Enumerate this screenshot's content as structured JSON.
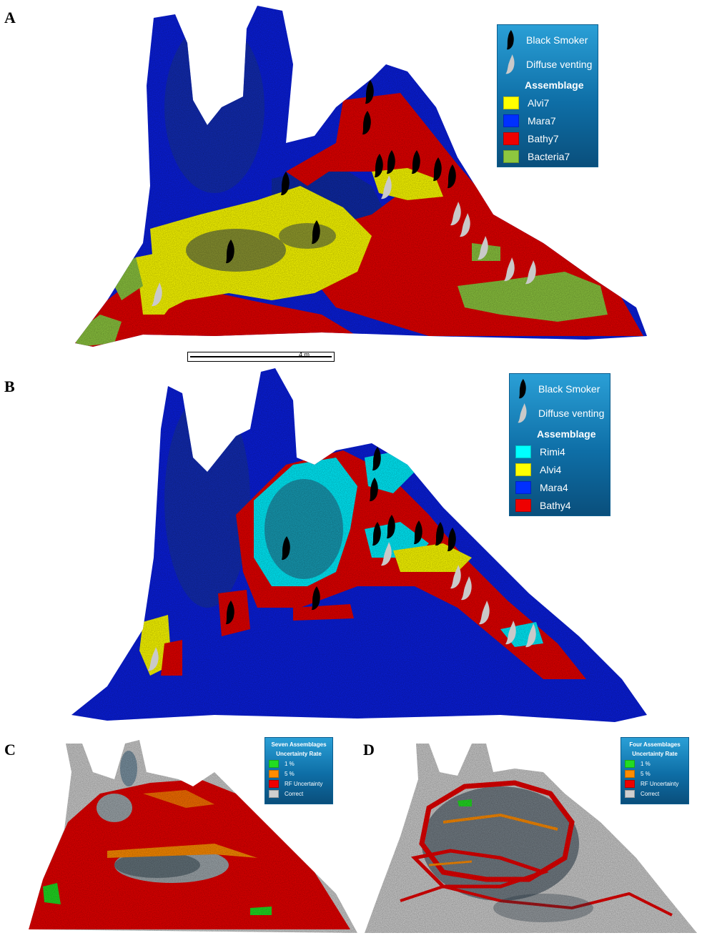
{
  "panels": {
    "a": {
      "letter": "A"
    },
    "b": {
      "letter": "B"
    },
    "c": {
      "letter": "C"
    },
    "d": {
      "letter": "D"
    }
  },
  "legend_a": {
    "black_smoker": "Black Smoker",
    "diffuse_venting": "Diffuse venting",
    "heading": "Assemblage",
    "items": [
      {
        "label": "Alvi7",
        "color": "#ffff00"
      },
      {
        "label": "Mara7",
        "color": "#0030ff"
      },
      {
        "label": "Bathy7",
        "color": "#ee0000"
      },
      {
        "label": "Bacteria7",
        "color": "#8dc63f"
      }
    ]
  },
  "legend_b": {
    "black_smoker": "Black Smoker",
    "diffuse_venting": "Diffuse venting",
    "heading": "Assemblage",
    "items": [
      {
        "label": "Rimi4",
        "color": "#00ffff"
      },
      {
        "label": "Alvi4",
        "color": "#ffff00"
      },
      {
        "label": "Mara4",
        "color": "#0030ff"
      },
      {
        "label": "Bathy4",
        "color": "#ee0000"
      }
    ]
  },
  "legend_c": {
    "heading1": "Seven Assemblages",
    "heading2": "Uncertainty Rate",
    "items": [
      {
        "label": "1 %",
        "color": "#22dd22"
      },
      {
        "label": "5 %",
        "color": "#ff8c00"
      },
      {
        "label": "RF Uncertainty",
        "color": "#ee0000"
      },
      {
        "label": "Correct",
        "color": "#cfcfcf"
      }
    ]
  },
  "legend_d": {
    "heading1": "Four Assemblages",
    "heading2": "Uncertainty Rate",
    "items": [
      {
        "label": "1 %",
        "color": "#22dd22"
      },
      {
        "label": "5 %",
        "color": "#ff8c00"
      },
      {
        "label": "RF Uncertainty",
        "color": "#ee0000"
      },
      {
        "label": "Correct",
        "color": "#cfcfcf"
      }
    ]
  },
  "scale_bar": {
    "label": "4 m"
  },
  "icons": {
    "black_smoker": "black-smoker-icon",
    "diffuse_venting": "diffuse-venting-icon"
  }
}
